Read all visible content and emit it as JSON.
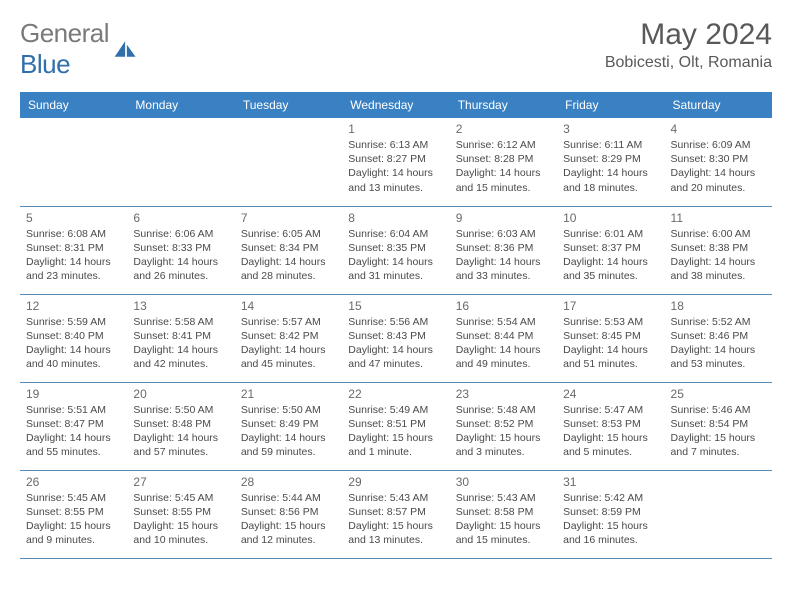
{
  "logo": {
    "text_a": "General",
    "text_b": "Blue",
    "color_a": "#7a7a7a",
    "color_b": "#2f6faa"
  },
  "title": "May 2024",
  "location": "Bobicesti, Olt, Romania",
  "header_bg": "#3a81c3",
  "header_fg": "#ffffff",
  "border_color": "#5a88b6",
  "daynum_color": "#6a6a6a",
  "detail_color": "#4a4a4a",
  "day_font_size": 12,
  "detail_font_size": 10.5,
  "weekdays": [
    "Sunday",
    "Monday",
    "Tuesday",
    "Wednesday",
    "Thursday",
    "Friday",
    "Saturday"
  ],
  "weeks": [
    [
      null,
      null,
      null,
      {
        "n": "1",
        "sr": "6:13 AM",
        "ss": "8:27 PM",
        "dl": "14 hours and 13 minutes."
      },
      {
        "n": "2",
        "sr": "6:12 AM",
        "ss": "8:28 PM",
        "dl": "14 hours and 15 minutes."
      },
      {
        "n": "3",
        "sr": "6:11 AM",
        "ss": "8:29 PM",
        "dl": "14 hours and 18 minutes."
      },
      {
        "n": "4",
        "sr": "6:09 AM",
        "ss": "8:30 PM",
        "dl": "14 hours and 20 minutes."
      }
    ],
    [
      {
        "n": "5",
        "sr": "6:08 AM",
        "ss": "8:31 PM",
        "dl": "14 hours and 23 minutes."
      },
      {
        "n": "6",
        "sr": "6:06 AM",
        "ss": "8:33 PM",
        "dl": "14 hours and 26 minutes."
      },
      {
        "n": "7",
        "sr": "6:05 AM",
        "ss": "8:34 PM",
        "dl": "14 hours and 28 minutes."
      },
      {
        "n": "8",
        "sr": "6:04 AM",
        "ss": "8:35 PM",
        "dl": "14 hours and 31 minutes."
      },
      {
        "n": "9",
        "sr": "6:03 AM",
        "ss": "8:36 PM",
        "dl": "14 hours and 33 minutes."
      },
      {
        "n": "10",
        "sr": "6:01 AM",
        "ss": "8:37 PM",
        "dl": "14 hours and 35 minutes."
      },
      {
        "n": "11",
        "sr": "6:00 AM",
        "ss": "8:38 PM",
        "dl": "14 hours and 38 minutes."
      }
    ],
    [
      {
        "n": "12",
        "sr": "5:59 AM",
        "ss": "8:40 PM",
        "dl": "14 hours and 40 minutes."
      },
      {
        "n": "13",
        "sr": "5:58 AM",
        "ss": "8:41 PM",
        "dl": "14 hours and 42 minutes."
      },
      {
        "n": "14",
        "sr": "5:57 AM",
        "ss": "8:42 PM",
        "dl": "14 hours and 45 minutes."
      },
      {
        "n": "15",
        "sr": "5:56 AM",
        "ss": "8:43 PM",
        "dl": "14 hours and 47 minutes."
      },
      {
        "n": "16",
        "sr": "5:54 AM",
        "ss": "8:44 PM",
        "dl": "14 hours and 49 minutes."
      },
      {
        "n": "17",
        "sr": "5:53 AM",
        "ss": "8:45 PM",
        "dl": "14 hours and 51 minutes."
      },
      {
        "n": "18",
        "sr": "5:52 AM",
        "ss": "8:46 PM",
        "dl": "14 hours and 53 minutes."
      }
    ],
    [
      {
        "n": "19",
        "sr": "5:51 AM",
        "ss": "8:47 PM",
        "dl": "14 hours and 55 minutes."
      },
      {
        "n": "20",
        "sr": "5:50 AM",
        "ss": "8:48 PM",
        "dl": "14 hours and 57 minutes."
      },
      {
        "n": "21",
        "sr": "5:50 AM",
        "ss": "8:49 PM",
        "dl": "14 hours and 59 minutes."
      },
      {
        "n": "22",
        "sr": "5:49 AM",
        "ss": "8:51 PM",
        "dl": "15 hours and 1 minute."
      },
      {
        "n": "23",
        "sr": "5:48 AM",
        "ss": "8:52 PM",
        "dl": "15 hours and 3 minutes."
      },
      {
        "n": "24",
        "sr": "5:47 AM",
        "ss": "8:53 PM",
        "dl": "15 hours and 5 minutes."
      },
      {
        "n": "25",
        "sr": "5:46 AM",
        "ss": "8:54 PM",
        "dl": "15 hours and 7 minutes."
      }
    ],
    [
      {
        "n": "26",
        "sr": "5:45 AM",
        "ss": "8:55 PM",
        "dl": "15 hours and 9 minutes."
      },
      {
        "n": "27",
        "sr": "5:45 AM",
        "ss": "8:55 PM",
        "dl": "15 hours and 10 minutes."
      },
      {
        "n": "28",
        "sr": "5:44 AM",
        "ss": "8:56 PM",
        "dl": "15 hours and 12 minutes."
      },
      {
        "n": "29",
        "sr": "5:43 AM",
        "ss": "8:57 PM",
        "dl": "15 hours and 13 minutes."
      },
      {
        "n": "30",
        "sr": "5:43 AM",
        "ss": "8:58 PM",
        "dl": "15 hours and 15 minutes."
      },
      {
        "n": "31",
        "sr": "5:42 AM",
        "ss": "8:59 PM",
        "dl": "15 hours and 16 minutes."
      },
      null
    ]
  ],
  "labels": {
    "sunrise": "Sunrise:",
    "sunset": "Sunset:",
    "daylight": "Daylight:"
  }
}
